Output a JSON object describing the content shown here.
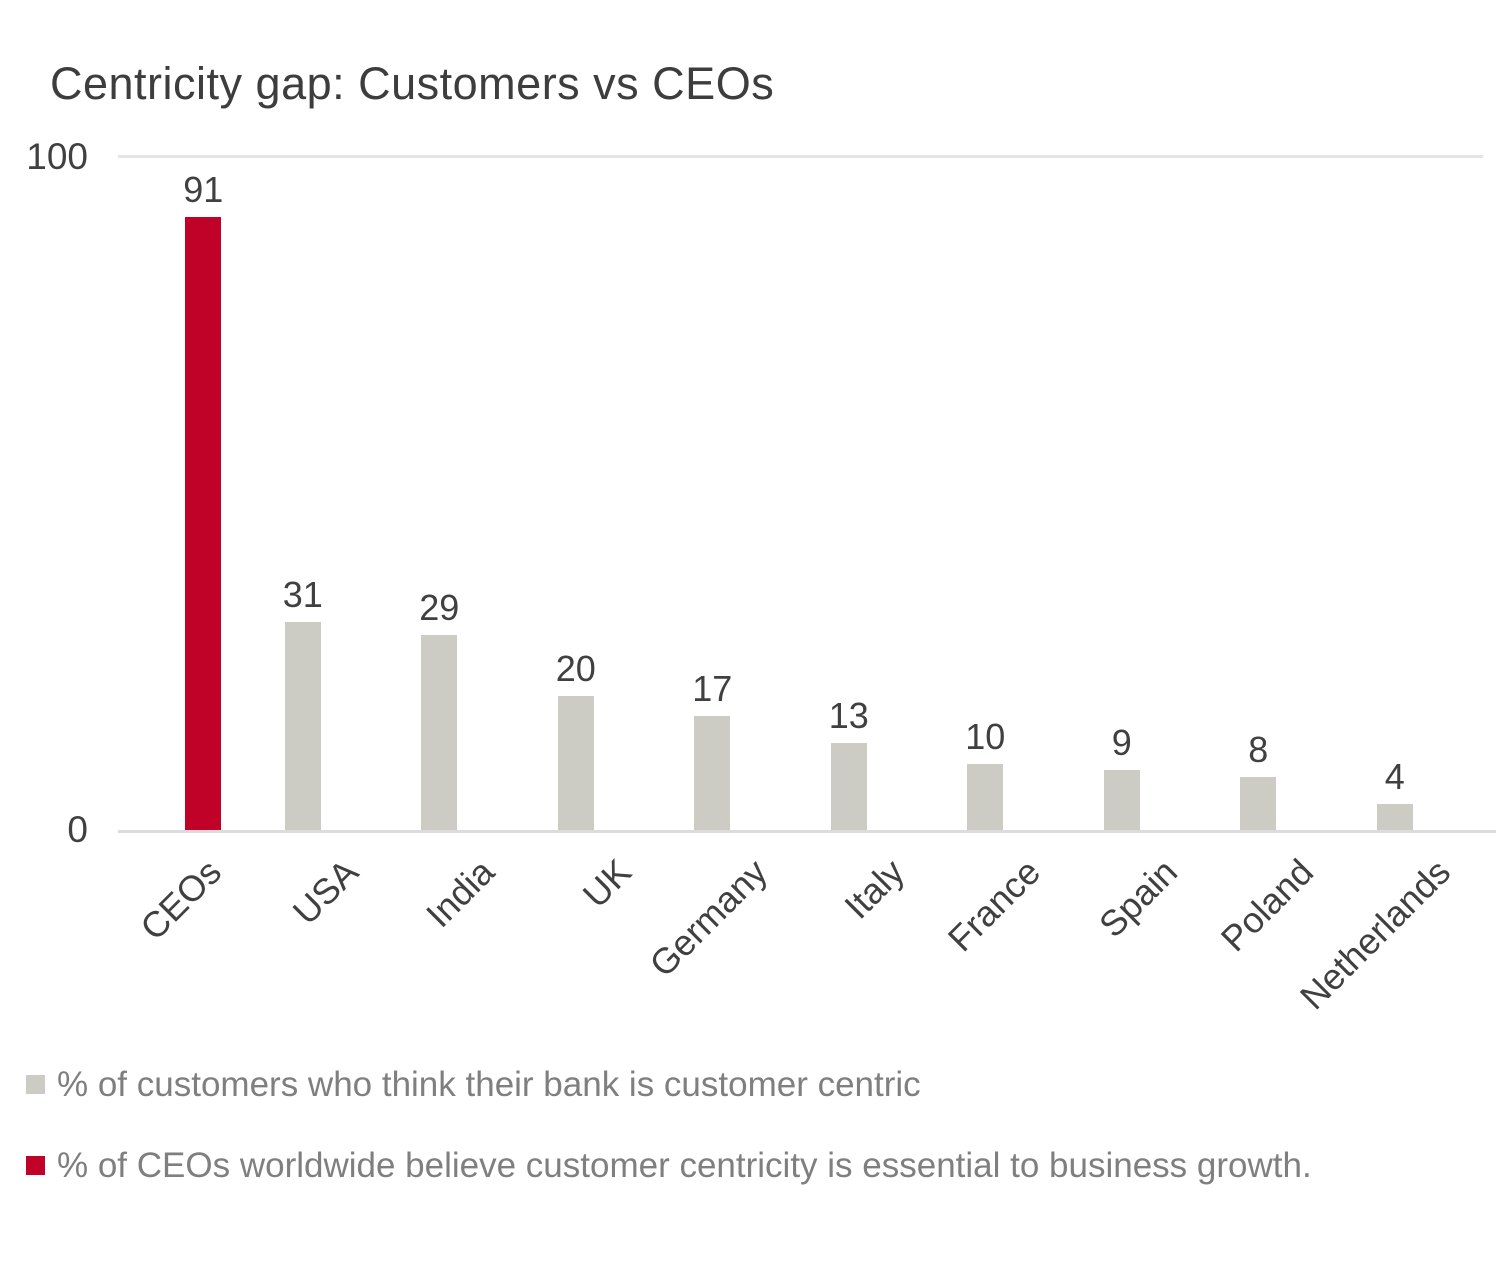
{
  "chart_data": {
    "type": "bar",
    "title": "Centricity gap: Customers vs CEOs",
    "categories": [
      "CEOs",
      "USA",
      "India",
      "UK",
      "Germany",
      "Italy",
      "France",
      "Spain",
      "Poland",
      "Netherlands"
    ],
    "series": [
      {
        "name": "% of customers who think their bank is customer centric",
        "color": "#CDCCC4",
        "values": [
          null,
          31,
          29,
          20,
          17,
          13,
          10,
          9,
          8,
          4
        ]
      },
      {
        "name": "% of CEOs worldwide believe customer centricity is essential to business growth.",
        "color": "#C00228",
        "values": [
          91,
          null,
          null,
          null,
          null,
          null,
          null,
          null,
          null,
          null
        ]
      }
    ],
    "xlabel": "",
    "ylabel": "",
    "ylim": [
      0,
      100
    ],
    "yticks": [
      0,
      100
    ],
    "grid": "horizontal line at 100 and baseline at 0 only",
    "legend_position": "bottom-left",
    "bar_labels": true
  },
  "axis": {
    "y_max_label": "100",
    "y_min_label": "0"
  },
  "colors": {
    "accent_red": "#C00228",
    "bar_gray": "#CDCCC4",
    "text_dark": "#404040",
    "legend_text": "#7F7F7F",
    "gridline": "#E4E4E4"
  }
}
